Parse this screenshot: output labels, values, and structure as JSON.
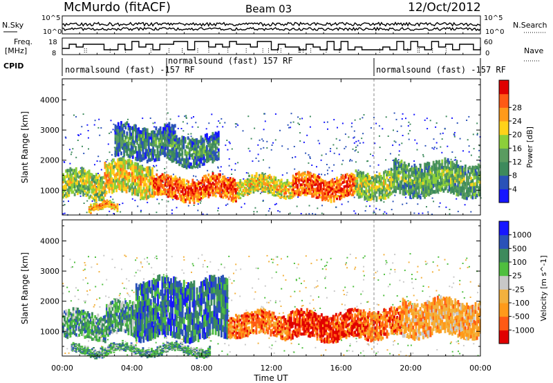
{
  "header": {
    "station": "McMurdo (fitACF)",
    "beam": "Beam 03",
    "date": "12/Oct/2012"
  },
  "colors": {
    "power_scale": [
      "#1616ff",
      "#2a52b8",
      "#3d8a5c",
      "#5a9c60",
      "#8ccf3a",
      "#ffd21a",
      "#ff9a1a",
      "#ff5a14",
      "#e00000"
    ],
    "velocity_scale": [
      "#e00000",
      "#ff5a14",
      "#ff9a1a",
      "#f3b13e",
      "#c8c8c8",
      "#4fbf3f",
      "#3d8a5c",
      "#2a52b8",
      "#1616ff"
    ]
  },
  "top_panels": {
    "nsky_label": "N.Sky",
    "nsearch_label": "N.Search",
    "nsky_ticks": [
      "10^5",
      "10^0"
    ],
    "nsearch_ticks": [
      "10^5",
      "10^0"
    ],
    "freq_label_1": "Freq.",
    "freq_label_2": "[MHz]",
    "freq_ticks": [
      "18",
      "8"
    ],
    "nave_label": "Nave",
    "nave_ticks": [
      "60",
      "0"
    ],
    "cpid_label": "CPID",
    "cpid_segments": [
      {
        "text": "normalsound (fast) -157 RF"
      },
      {
        "text": "normalsound (fast) 157 RF"
      },
      {
        "text": "normalsound (fast) -157 RF"
      }
    ]
  },
  "chart_data": [
    {
      "type": "heatmap",
      "title": "",
      "xlabel": "",
      "ylabel": "Slant Range [km]",
      "colorbar_label": "Power [dB]",
      "colorbar_ticks": [
        "4",
        "8",
        "12",
        "16",
        "20",
        "24",
        "28"
      ],
      "y_ticks": [
        "1000",
        "2000",
        "3000",
        "4000"
      ],
      "y_ticks_values": [
        1000,
        2000,
        3000,
        4000
      ],
      "ylim": [
        180,
        4700
      ],
      "xlim": [
        0,
        24
      ],
      "x_ticks": [
        "00:00",
        "04:00",
        "08:00",
        "12:00",
        "16:00",
        "20:00",
        "00:00"
      ],
      "x_ticks_values": [
        0,
        4,
        8,
        12,
        16,
        20,
        24
      ],
      "bands": [
        {
          "t0": 0.0,
          "t1": 2.4,
          "r0": 700,
          "r1": 1700,
          "level": 4
        },
        {
          "t0": 2.4,
          "t1": 5.2,
          "r0": 800,
          "r1": 2000,
          "level": 5
        },
        {
          "t0": 5.2,
          "t1": 10.0,
          "r0": 650,
          "r1": 1500,
          "level": 7
        },
        {
          "t0": 10.0,
          "t1": 13.2,
          "r0": 800,
          "r1": 1500,
          "level": 5
        },
        {
          "t0": 13.2,
          "t1": 16.8,
          "r0": 700,
          "r1": 1550,
          "level": 7
        },
        {
          "t0": 16.8,
          "t1": 19.0,
          "r0": 700,
          "r1": 1700,
          "level": 4
        },
        {
          "t0": 19.0,
          "t1": 24.0,
          "r0": 800,
          "r1": 2000,
          "level": 3
        },
        {
          "t0": 3.0,
          "t1": 6.5,
          "r0": 2000,
          "r1": 3200,
          "level": 2
        },
        {
          "t0": 6.0,
          "t1": 9.0,
          "r0": 1800,
          "r1": 2900,
          "level": 2
        },
        {
          "t0": 1.5,
          "t1": 3.2,
          "r0": 250,
          "r1": 600,
          "level": 6
        }
      ]
    },
    {
      "type": "heatmap",
      "title": "",
      "xlabel": "Time UT",
      "ylabel": "Slant Range [km]",
      "colorbar_label": "Velocity [m s^-1]",
      "colorbar_ticks": [
        "-1000",
        "-500",
        "-100",
        "-25",
        "25",
        "100",
        "500",
        "1000"
      ],
      "y_ticks": [
        "1000",
        "2000",
        "3000",
        "4000"
      ],
      "y_ticks_values": [
        1000,
        2000,
        3000,
        4000
      ],
      "ylim": [
        180,
        4700
      ],
      "xlim": [
        0,
        24
      ],
      "x_ticks": [
        "00:00",
        "04:00",
        "08:00",
        "12:00",
        "16:00",
        "20:00",
        "00:00"
      ],
      "x_ticks_values": [
        0,
        4,
        8,
        12,
        16,
        20,
        24
      ],
      "bands": [
        {
          "t0": 0.0,
          "t1": 2.5,
          "r0": 700,
          "r1": 1700,
          "level": 6
        },
        {
          "t0": 2.5,
          "t1": 5.5,
          "r0": 800,
          "r1": 2000,
          "level": 6
        },
        {
          "t0": 4.2,
          "t1": 9.5,
          "r0": 700,
          "r1": 2800,
          "level": 7
        },
        {
          "t0": 9.5,
          "t1": 13.0,
          "r0": 800,
          "r1": 1700,
          "level": 2
        },
        {
          "t0": 13.0,
          "t1": 17.0,
          "r0": 700,
          "r1": 1700,
          "level": 1
        },
        {
          "t0": 17.0,
          "t1": 19.5,
          "r0": 750,
          "r1": 1800,
          "level": 2
        },
        {
          "t0": 19.5,
          "t1": 24.0,
          "r0": 800,
          "r1": 2100,
          "level": 3
        },
        {
          "t0": 0.5,
          "t1": 8.5,
          "r0": 200,
          "r1": 600,
          "level": 6
        }
      ]
    }
  ]
}
